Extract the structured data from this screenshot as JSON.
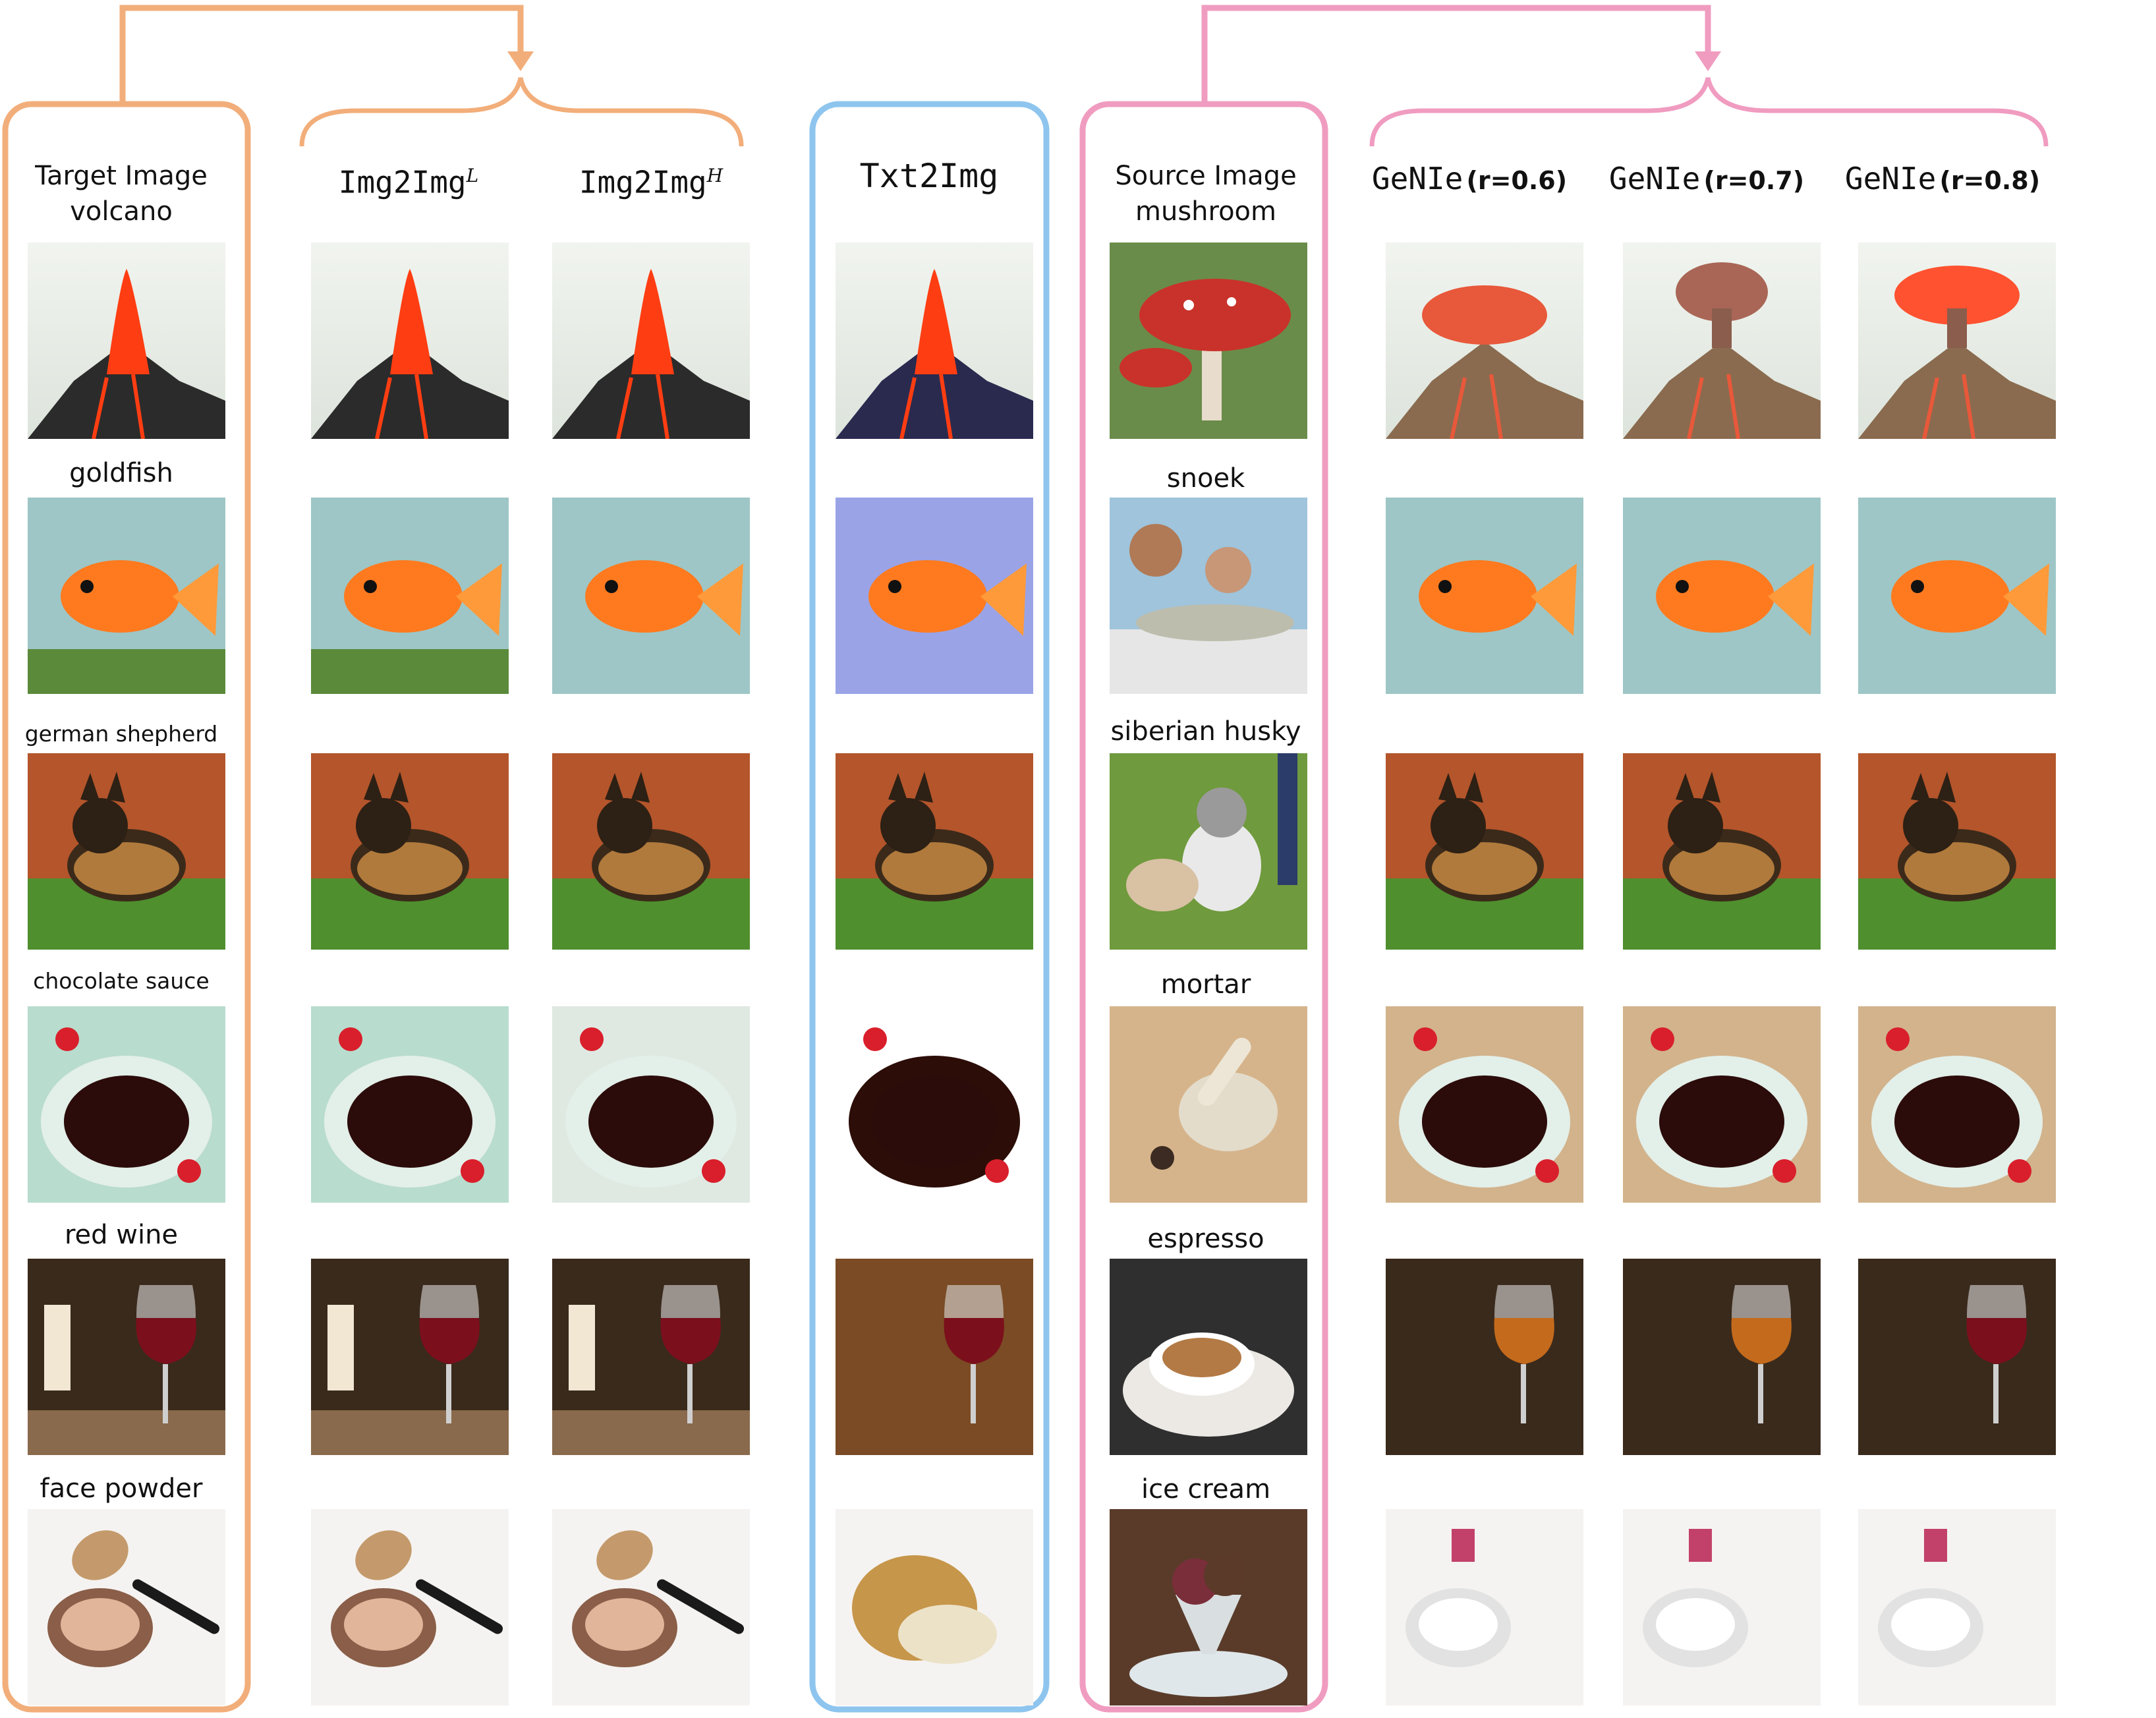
{
  "headers": {
    "target": [
      "Target Image",
      "volcano"
    ],
    "img2img_low": {
      "text": "Img2Img",
      "sup": "L"
    },
    "img2img_high": {
      "text": "Img2Img",
      "sup": "H"
    },
    "txt2img": "Txt2Img",
    "source": [
      "Source Image",
      "mushroom"
    ],
    "genie": [
      {
        "method": "GeNIe",
        "ratio": "(r=0.6)"
      },
      {
        "method": "GeNIe",
        "ratio": "(r=0.7)"
      },
      {
        "method": "GeNIe",
        "ratio": "(r=0.8)"
      }
    ]
  },
  "target_labels": [
    "goldfish",
    "german shepherd",
    "chocolate sauce",
    "red wine",
    "face powder"
  ],
  "source_labels": [
    "snoek",
    "siberian husky",
    "mortar",
    "espresso",
    "ice cream"
  ],
  "rows": [
    {
      "target": "volcano",
      "source": "mushroom"
    },
    {
      "target": "goldfish",
      "source": "snoek"
    },
    {
      "target": "german shepherd",
      "source": "siberian husky"
    },
    {
      "target": "chocolate sauce",
      "source": "mortar"
    },
    {
      "target": "red wine",
      "source": "espresso"
    },
    {
      "target": "face powder",
      "source": "ice cream"
    }
  ],
  "colors": {
    "orange_group": "#F2AE7A",
    "blue_group": "#8EC5EE",
    "pink_group": "#F09CC0"
  }
}
